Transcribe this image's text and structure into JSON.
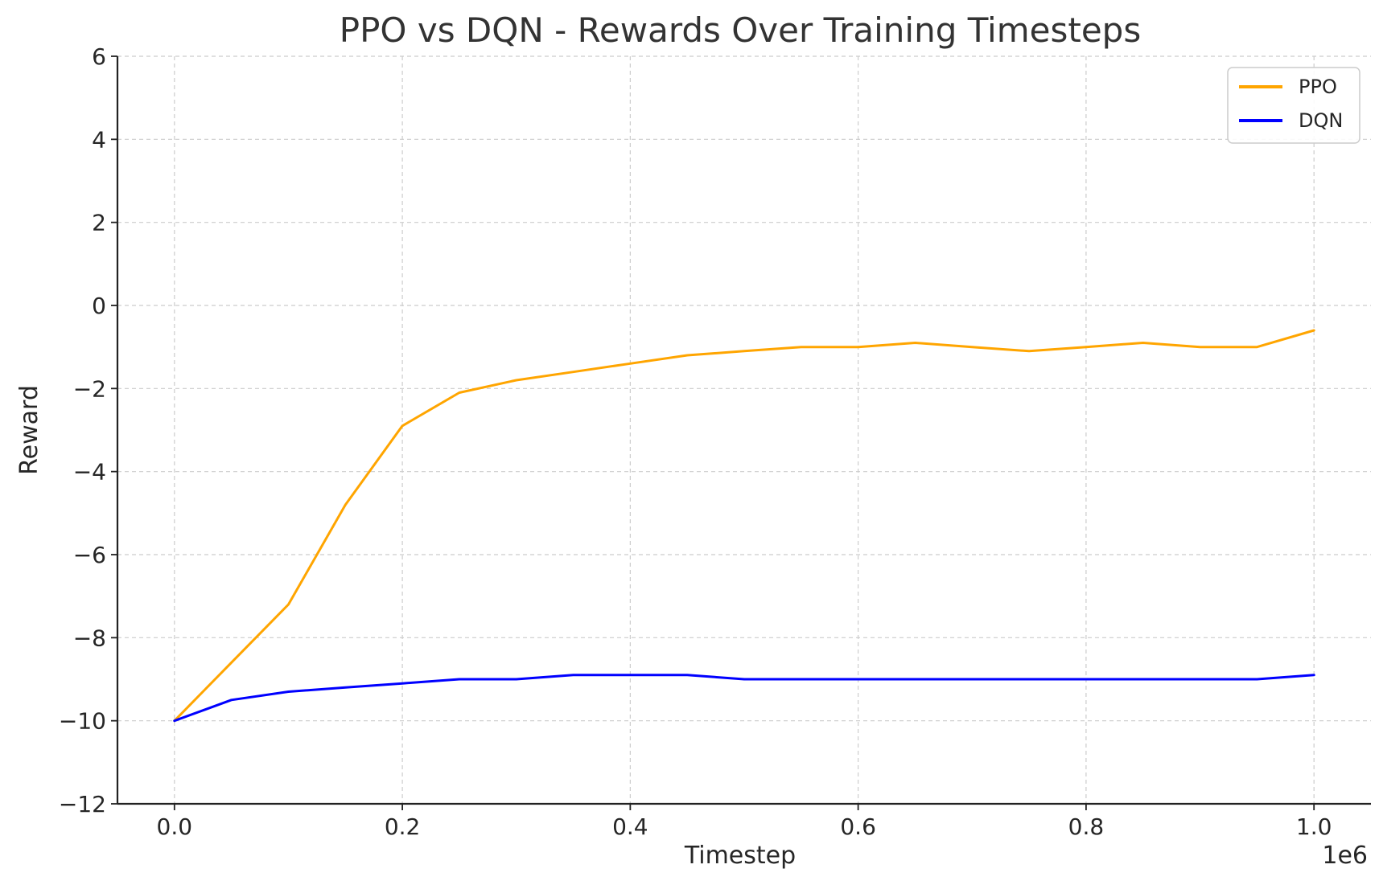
{
  "chart_data": {
    "type": "line",
    "title": "PPO vs DQN - Rewards Over Training Timesteps",
    "xlabel": "Timestep",
    "ylabel": "Reward",
    "x_offset_label": "1e6",
    "xlim": [
      -0.05,
      1.05
    ],
    "ylim": [
      -12,
      6
    ],
    "xticks": [
      0.0,
      0.2,
      0.4,
      0.6,
      0.8,
      1.0
    ],
    "xtick_labels": [
      "0.0",
      "0.2",
      "0.4",
      "0.6",
      "0.8",
      "1.0"
    ],
    "yticks": [
      -12,
      -10,
      -8,
      -6,
      -4,
      -2,
      0,
      2,
      4,
      6
    ],
    "ytick_labels": [
      "−12",
      "−10",
      "−8",
      "−6",
      "−4",
      "−2",
      "0",
      "2",
      "4",
      "6"
    ],
    "grid": true,
    "legend_position": "top-right",
    "x": [
      0.0,
      0.05,
      0.1,
      0.15,
      0.2,
      0.25,
      0.3,
      0.35,
      0.4,
      0.45,
      0.5,
      0.55,
      0.6,
      0.65,
      0.7,
      0.75,
      0.8,
      0.85,
      0.9,
      0.95,
      1.0
    ],
    "series": [
      {
        "name": "PPO",
        "color": "#FFA500",
        "values": [
          -10.0,
          -8.6,
          -7.2,
          -4.8,
          -2.9,
          -2.1,
          -1.8,
          -1.6,
          -1.4,
          -1.2,
          -1.1,
          -1.0,
          -1.0,
          -0.9,
          -1.0,
          -1.1,
          -1.0,
          -0.9,
          -1.0,
          -1.0,
          -0.6
        ]
      },
      {
        "name": "DQN",
        "color": "#0000FF",
        "values": [
          -10.0,
          -9.5,
          -9.3,
          -9.2,
          -9.1,
          -9.0,
          -9.0,
          -8.9,
          -8.9,
          -8.9,
          -9.0,
          -9.0,
          -9.0,
          -9.0,
          -9.0,
          -9.0,
          -9.0,
          -9.0,
          -9.0,
          -9.0,
          -8.9
        ]
      }
    ]
  }
}
